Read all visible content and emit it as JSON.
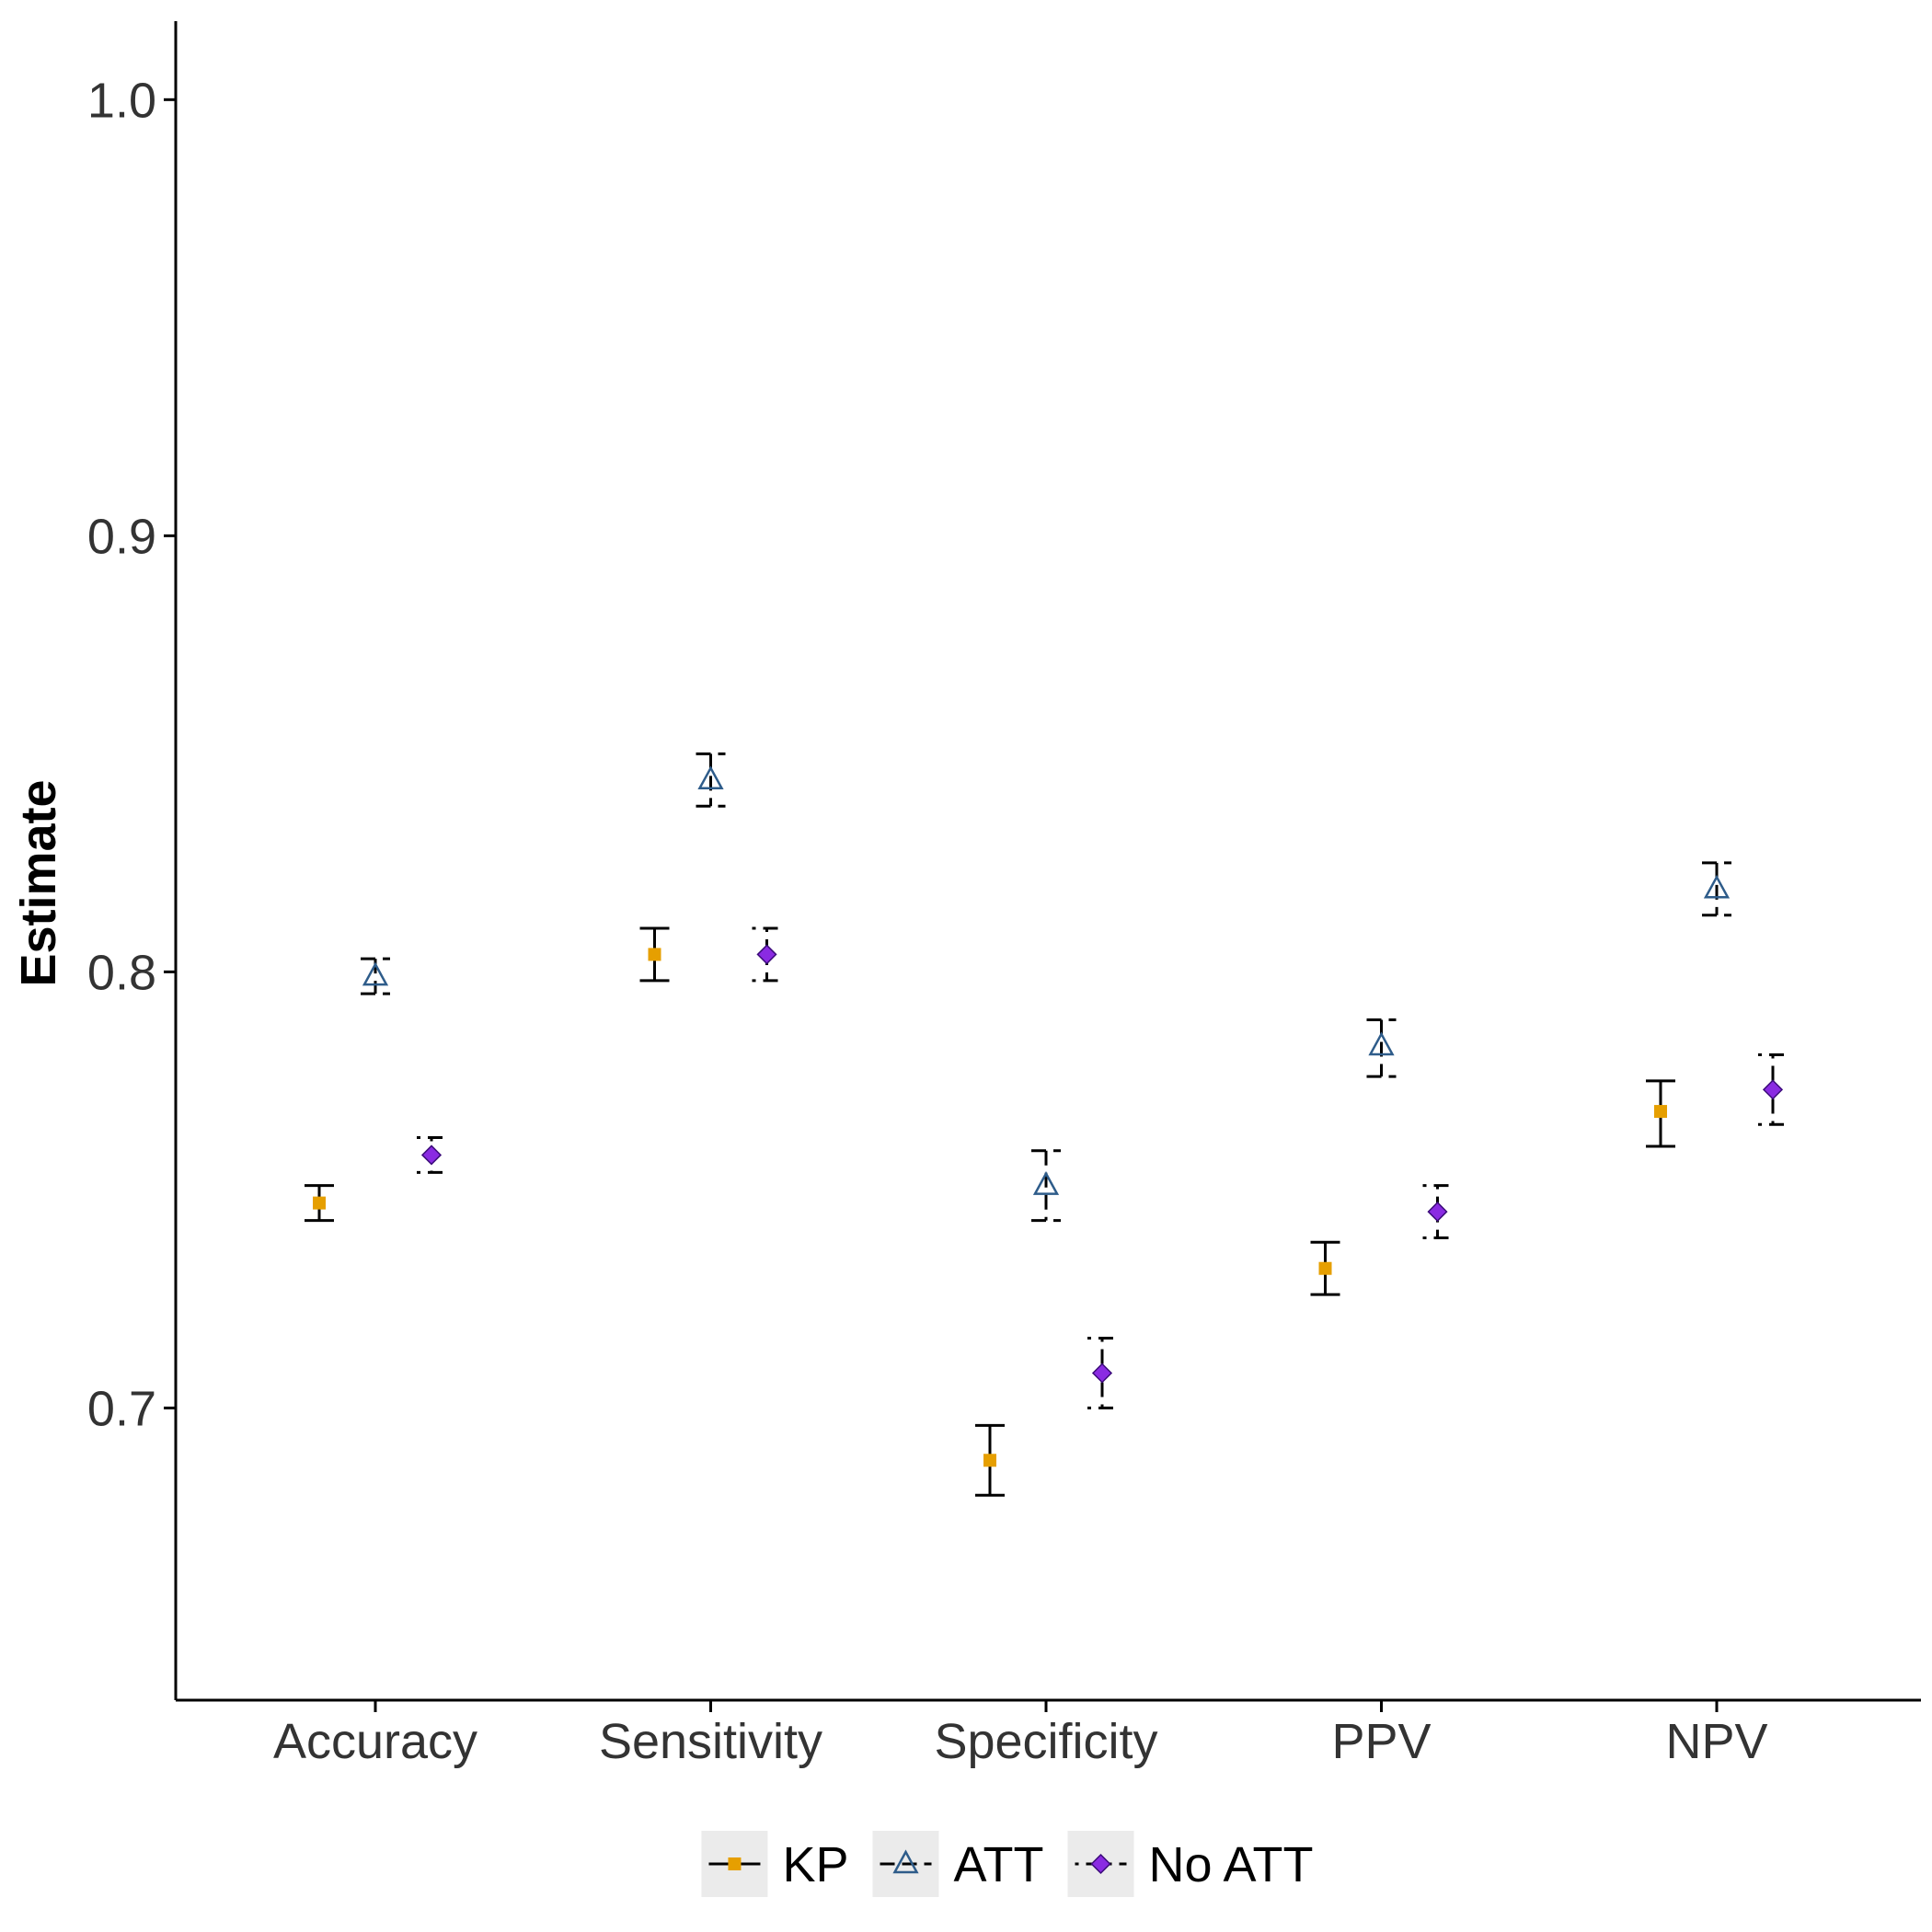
{
  "chart_data": {
    "type": "scatter",
    "title": "",
    "xlabel": "",
    "ylabel": "Estimate",
    "ylim": [
      0.633,
      1.018
    ],
    "yticks": [
      0.7,
      0.8,
      0.9,
      1.0
    ],
    "ytick_labels": [
      "0.7",
      "0.8",
      "0.9",
      "1.0"
    ],
    "categories": [
      "Accuracy",
      "Sensitivity",
      "Specificity",
      "PPV",
      "NPV"
    ],
    "grid": false,
    "legend_position": "bottom",
    "series": [
      {
        "name": "KP",
        "marker": "square",
        "color": "#E69F00",
        "linetype": "solid",
        "values": [
          0.747,
          0.804,
          0.688,
          0.732,
          0.768
        ],
        "lower": [
          0.743,
          0.798,
          0.68,
          0.726,
          0.76
        ],
        "upper": [
          0.751,
          0.81,
          0.696,
          0.738,
          0.775
        ]
      },
      {
        "name": "ATT",
        "marker": "triangle-open",
        "color": "#2E5C8A",
        "linetype": "dashed",
        "values": [
          0.799,
          0.844,
          0.751,
          0.783,
          0.819
        ],
        "lower": [
          0.795,
          0.838,
          0.743,
          0.776,
          0.813
        ],
        "upper": [
          0.803,
          0.85,
          0.759,
          0.789,
          0.825
        ]
      },
      {
        "name": "No ATT",
        "marker": "diamond",
        "color": "#8A2BE2",
        "linetype": "dotdash",
        "values": [
          0.758,
          0.804,
          0.708,
          0.745,
          0.773
        ],
        "lower": [
          0.754,
          0.798,
          0.7,
          0.739,
          0.765
        ],
        "upper": [
          0.762,
          0.81,
          0.716,
          0.751,
          0.781
        ]
      }
    ]
  }
}
